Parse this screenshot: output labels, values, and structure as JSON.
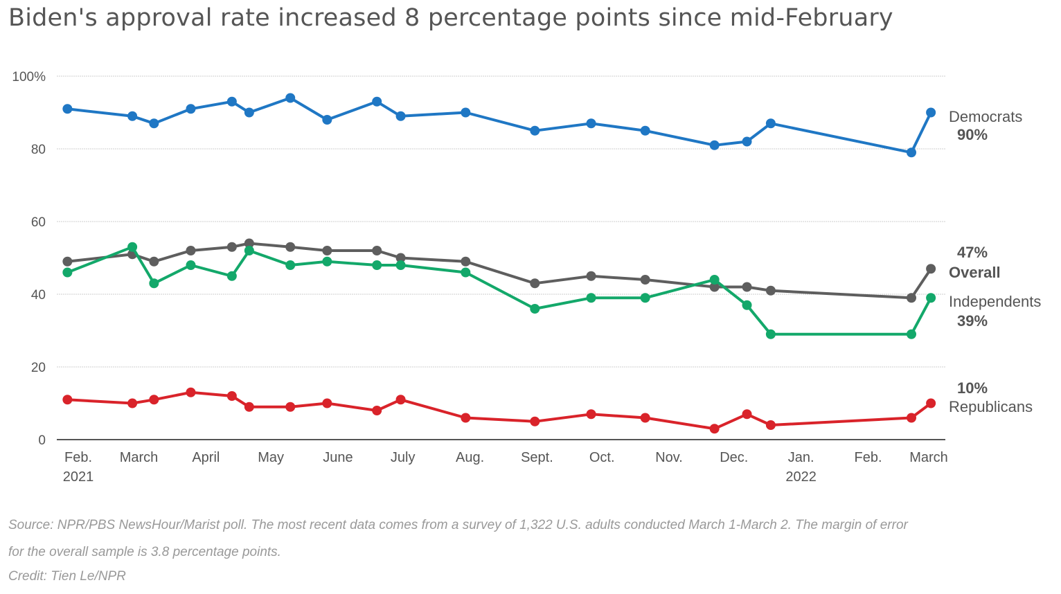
{
  "title": "Biden's approval rate increased 8 percentage points since mid-February",
  "footer": {
    "source_line1": "Source: NPR/PBS NewsHour/Marist poll. The most recent data comes from a survey of 1,322 U.S. adults conducted March 1-March 2. The margin of error",
    "source_line2": "for the overall sample is 3.8 percentage points.",
    "credit": "Credit: Tien Le/NPR"
  },
  "chart_data": {
    "type": "line",
    "title": "Biden's approval rate increased 8 percentage points since mid-February",
    "xlabel": "",
    "ylabel": "",
    "ylim": [
      0,
      100
    ],
    "yticks": [
      {
        "value": 0,
        "label": "0"
      },
      {
        "value": 20,
        "label": "20"
      },
      {
        "value": 40,
        "label": "40"
      },
      {
        "value": 60,
        "label": "60"
      },
      {
        "value": 80,
        "label": "80"
      },
      {
        "value": 100,
        "label": "100%"
      }
    ],
    "grid": true,
    "xlim": [
      "2021-01-28",
      "2022-03-08"
    ],
    "xticks": [
      {
        "date": "2021-02-01",
        "label": "Feb.",
        "sublabel": "2021"
      },
      {
        "date": "2021-03-01",
        "label": "March",
        "sublabel": ""
      },
      {
        "date": "2021-04-01",
        "label": "April",
        "sublabel": ""
      },
      {
        "date": "2021-05-01",
        "label": "May",
        "sublabel": ""
      },
      {
        "date": "2021-06-01",
        "label": "June",
        "sublabel": ""
      },
      {
        "date": "2021-07-01",
        "label": "July",
        "sublabel": ""
      },
      {
        "date": "2021-08-01",
        "label": "Aug.",
        "sublabel": ""
      },
      {
        "date": "2021-09-01",
        "label": "Sept.",
        "sublabel": ""
      },
      {
        "date": "2021-10-01",
        "label": "Oct.",
        "sublabel": ""
      },
      {
        "date": "2021-11-01",
        "label": "Nov.",
        "sublabel": ""
      },
      {
        "date": "2021-12-01",
        "label": "Dec.",
        "sublabel": ""
      },
      {
        "date": "2022-01-01",
        "label": "Jan.",
        "sublabel": "2022"
      },
      {
        "date": "2022-02-01",
        "label": "Feb.",
        "sublabel": ""
      },
      {
        "date": "2022-03-01",
        "label": "March",
        "sublabel": ""
      }
    ],
    "x": [
      "2021-01-27",
      "2021-02-26",
      "2021-03-08",
      "2021-03-25",
      "2021-04-13",
      "2021-04-21",
      "2021-05-10",
      "2021-05-27",
      "2021-06-19",
      "2021-06-30",
      "2021-07-30",
      "2021-08-31",
      "2021-09-26",
      "2021-10-21",
      "2021-11-22",
      "2021-12-07",
      "2021-12-18",
      "2022-02-21",
      "2022-03-02"
    ],
    "series": [
      {
        "name": "Democrats",
        "color": "#1f77c4",
        "end_label": "90%",
        "values": [
          91,
          89,
          87,
          91,
          93,
          90,
          94,
          88,
          93,
          89,
          90,
          85,
          87,
          85,
          81,
          82,
          87,
          79,
          90
        ]
      },
      {
        "name": "Overall",
        "color": "#5e5e5e",
        "end_label": "47%",
        "values": [
          49,
          51,
          49,
          52,
          53,
          54,
          53,
          52,
          52,
          50,
          49,
          43,
          45,
          44,
          42,
          42,
          41,
          39,
          47
        ]
      },
      {
        "name": "Independents",
        "color": "#13a86a",
        "end_label": "39%",
        "values": [
          46,
          53,
          43,
          48,
          45,
          52,
          48,
          49,
          48,
          48,
          46,
          36,
          39,
          39,
          44,
          37,
          29,
          29,
          39
        ]
      },
      {
        "name": "Republicans",
        "color": "#d9232a",
        "end_label": "10%",
        "values": [
          11,
          10,
          11,
          13,
          12,
          9,
          9,
          10,
          8,
          11,
          6,
          5,
          7,
          6,
          3,
          7,
          4,
          6,
          10
        ]
      }
    ],
    "legend": "direct labels at right end of each line"
  }
}
